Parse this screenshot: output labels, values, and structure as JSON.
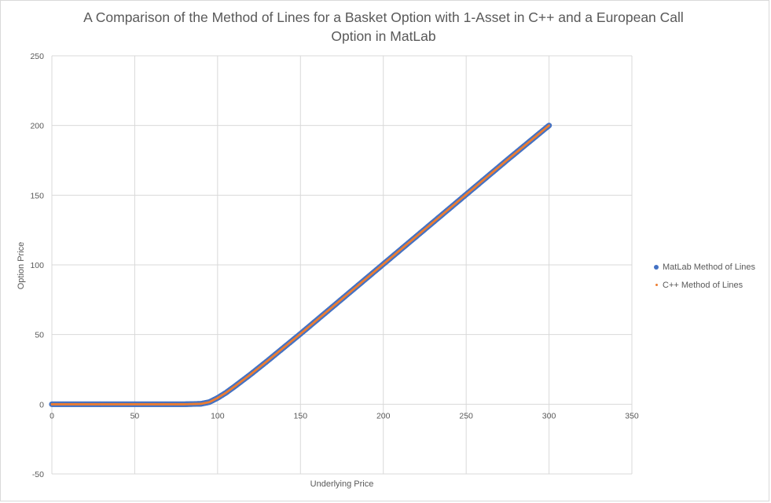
{
  "chart_data": {
    "type": "scatter",
    "title_line1": "A Comparison of the Method of Lines for a Basket Option with 1-Asset in C++ and a European Call",
    "title_line2": "Option in MatLab",
    "xlabel": "Underlying Price",
    "ylabel": "Option Price",
    "xlim": [
      0,
      350
    ],
    "ylim": [
      -50,
      250
    ],
    "xticks": [
      "0",
      "50",
      "100",
      "150",
      "200",
      "250",
      "300",
      "350"
    ],
    "yticks": [
      "-50",
      "0",
      "50",
      "100",
      "150",
      "200",
      "250"
    ],
    "grid": true,
    "legend_position": "right",
    "series": [
      {
        "name": "MatLab Method of Lines",
        "color": "#4472C4",
        "marker": "large-dot",
        "x": [
          0,
          50,
          80,
          90,
          95,
          100,
          105,
          110,
          120,
          130,
          150,
          175,
          200,
          225,
          250,
          275,
          300
        ],
        "y": [
          0,
          0,
          0,
          0.3,
          1.5,
          4.5,
          8.2,
          12.5,
          21.5,
          31,
          50.5,
          75.5,
          100.5,
          125.5,
          150.5,
          175.5,
          200
        ]
      },
      {
        "name": "C++ Method of Lines",
        "color": "#ED7D31",
        "marker": "small-dot",
        "x": [
          0,
          50,
          80,
          90,
          95,
          100,
          105,
          110,
          120,
          130,
          150,
          175,
          200,
          225,
          250,
          275,
          300
        ],
        "y": [
          0,
          0,
          0,
          0.3,
          1.5,
          4.5,
          8.2,
          12.5,
          21.5,
          31,
          50.5,
          75.5,
          100.5,
          125.5,
          150.5,
          175.5,
          200
        ]
      }
    ]
  }
}
